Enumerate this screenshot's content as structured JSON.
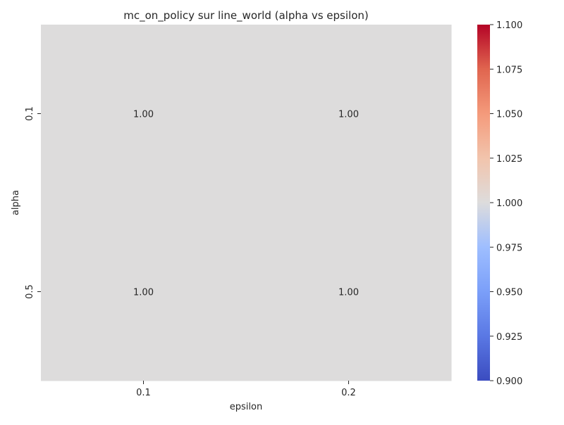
{
  "chart_data": {
    "type": "heatmap",
    "title": "mc_on_policy sur line_world (alpha vs epsilon)",
    "xlabel": "epsilon",
    "ylabel": "alpha",
    "x_categories": [
      "0.1",
      "0.2"
    ],
    "y_categories": [
      "0.1",
      "0.5"
    ],
    "values": [
      [
        1.0,
        1.0
      ],
      [
        1.0,
        1.0
      ]
    ],
    "cell_labels": [
      [
        "1.00",
        "1.00"
      ],
      [
        "1.00",
        "1.00"
      ]
    ],
    "colormap": "coolwarm",
    "colorbar": {
      "range": [
        0.9,
        1.1
      ],
      "ticks": [
        "0.900",
        "0.925",
        "0.950",
        "0.975",
        "1.000",
        "1.025",
        "1.050",
        "1.075",
        "1.100"
      ]
    },
    "colors": {
      "low": "#3b4cc0",
      "mid": "#dddcdc",
      "high": "#b40426"
    }
  }
}
